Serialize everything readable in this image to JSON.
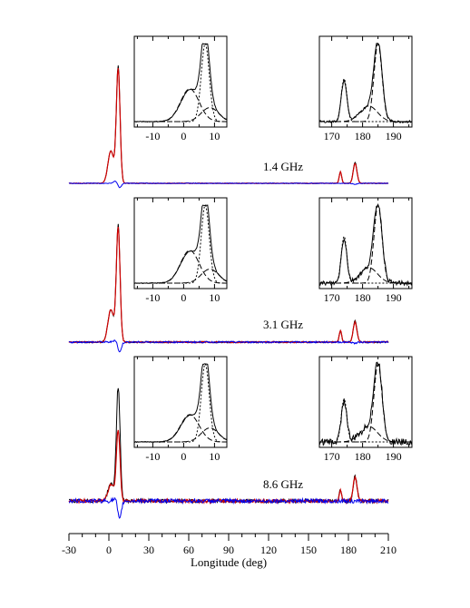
{
  "chart_data": {
    "type": "line",
    "xlabel": "Longitude (deg)",
    "ylabel": "",
    "xlim": [
      -30,
      210
    ],
    "x_ticks": [
      "-30",
      "0",
      "30",
      "60",
      "90",
      "120",
      "150",
      "180",
      "210"
    ],
    "grid": false,
    "series_colors": {
      "total": "#000000",
      "linear": "#d00000",
      "circular": "#0000ee"
    },
    "panels": [
      {
        "frequency": "1.4 GHz",
        "peaks": {
          "main_total": 1.0,
          "main_shoulder": 0.28,
          "inter1": 0.1,
          "inter2": 0.18,
          "circular_main": -0.04
        },
        "insets": [
          {
            "region": "main",
            "xlim": [
              -16,
              14
            ],
            "x_ticks": [
              "-10",
              "0",
              "10"
            ]
          },
          {
            "region": "interpulse",
            "xlim": [
              166,
              196
            ],
            "x_ticks": [
              "170",
              "180",
              "190"
            ]
          }
        ]
      },
      {
        "frequency": "3.1 GHz",
        "peaks": {
          "main_total": 1.0,
          "main_shoulder": 0.28,
          "inter1": 0.1,
          "inter2": 0.18,
          "circular_main": -0.09
        },
        "insets": [
          {
            "region": "main",
            "xlim": [
              -16,
              14
            ],
            "x_ticks": [
              "-10",
              "0",
              "10"
            ]
          },
          {
            "region": "interpulse",
            "xlim": [
              166,
              196
            ],
            "x_ticks": [
              "170",
              "180",
              "190"
            ]
          }
        ]
      },
      {
        "frequency": "8.6 GHz",
        "peaks": {
          "main_total": 1.0,
          "main_linear": 0.62,
          "inter1": 0.1,
          "inter2": 0.22,
          "circular_main": -0.17
        },
        "insets": [
          {
            "region": "main",
            "xlim": [
              -16,
              14
            ],
            "x_ticks": [
              "-10",
              "0",
              "10"
            ]
          },
          {
            "region": "interpulse",
            "xlim": [
              166,
              196
            ],
            "x_ticks": [
              "170",
              "180",
              "190"
            ]
          }
        ]
      }
    ]
  }
}
